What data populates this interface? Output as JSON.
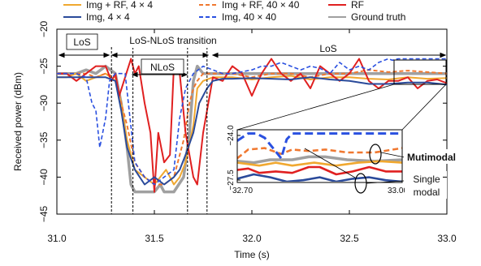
{
  "chart_data": {
    "type": "line",
    "xlabel": "Time (s)",
    "ylabel": "Received power (dBm)",
    "xlim": [
      31.0,
      33.0
    ],
    "ylim": [
      -45,
      -20
    ],
    "xticks": [
      "31.0",
      "31.5",
      "32.0",
      "32.5",
      "33.0"
    ],
    "xtick_values": [
      31.0,
      31.5,
      32.0,
      32.5,
      33.0
    ],
    "yticks": [
      "−20",
      "−25",
      "−30",
      "−35",
      "−40",
      "−45"
    ],
    "ytick_values": [
      -20,
      -25,
      -30,
      -35,
      -40,
      -45
    ],
    "grid": false,
    "legend_position": "top, above plot",
    "legend": [
      {
        "label": "Img + RF, 4 × 4",
        "color": "#f0a830",
        "dash": "solid"
      },
      {
        "label": "Img + RF, 40 × 40",
        "color": "#f07830",
        "dash": "dashed"
      },
      {
        "label": "RF",
        "color": "#e02020",
        "dash": "solid"
      },
      {
        "label": "Img, 4 × 4",
        "color": "#2a4a9a",
        "dash": "solid"
      },
      {
        "label": "Img, 40 × 40",
        "color": "#2a50e0",
        "dash": "dashed"
      },
      {
        "label": "Ground truth",
        "color": "#a0a0a0",
        "dash": "solid"
      }
    ],
    "series": [
      {
        "id": "ground_truth",
        "color": "#a0a0a0",
        "width": 3.5,
        "dash": "",
        "x": [
          31.0,
          31.05,
          31.1,
          31.15,
          31.2,
          31.25,
          31.3,
          31.33,
          31.36,
          31.38,
          31.4,
          31.45,
          31.5,
          31.53,
          31.55,
          31.6,
          31.65,
          31.68,
          31.7,
          31.72,
          31.75,
          31.8,
          31.9,
          32.0,
          32.1,
          32.2,
          32.3,
          32.4,
          32.5,
          32.6,
          32.7,
          32.8,
          32.9,
          33.0
        ],
        "y": [
          -26,
          -26,
          -26,
          -25.5,
          -26,
          -25,
          -26,
          -30,
          -36,
          -41,
          -42,
          -42,
          -42,
          -41,
          -42,
          -42,
          -40,
          -34,
          -27,
          -25,
          -26,
          -26,
          -26,
          -26,
          -26,
          -26,
          -26,
          -26,
          -26,
          -26,
          -26,
          -26,
          -26,
          -26
        ]
      },
      {
        "id": "img_rf_4x4",
        "color": "#f0a830",
        "width": 2,
        "dash": "",
        "x": [
          31.0,
          31.05,
          31.1,
          31.15,
          31.2,
          31.25,
          31.3,
          31.33,
          31.36,
          31.4,
          31.45,
          31.5,
          31.53,
          31.56,
          31.6,
          31.63,
          31.66,
          31.7,
          31.72,
          31.75,
          31.8,
          31.9,
          32.0,
          32.1,
          32.2,
          32.3,
          32.4,
          32.5,
          32.6,
          32.7,
          32.8,
          32.9,
          33.0
        ],
        "y": [
          -26.5,
          -26.5,
          -26,
          -27,
          -26.5,
          -26,
          -27,
          -30,
          -35,
          -39,
          -40,
          -41,
          -40,
          -39,
          -41,
          -40,
          -38,
          -33,
          -28,
          -27,
          -26.5,
          -26.5,
          -26.8,
          -26.5,
          -26.3,
          -26.8,
          -26.5,
          -26.5,
          -26.7,
          -26.8,
          -26.5,
          -26.7,
          -26.6
        ]
      },
      {
        "id": "img_rf_40x40",
        "color": "#f07830",
        "width": 2,
        "dash": "5,3",
        "x": [
          31.0,
          31.05,
          31.1,
          31.15,
          31.2,
          31.25,
          31.3,
          31.33,
          31.36,
          31.4,
          31.45,
          31.5,
          31.55,
          31.6,
          31.65,
          31.68,
          31.7,
          31.72,
          31.75,
          31.8,
          31.9,
          32.0,
          32.1,
          32.2,
          32.3,
          32.4,
          32.5,
          32.6,
          32.7,
          32.8,
          32.9,
          33.0
        ],
        "y": [
          -26,
          -26,
          -26,
          -26,
          -26.5,
          -26,
          -26.5,
          -30,
          -33,
          -38,
          -40,
          -41,
          -41,
          -40,
          -35,
          -30,
          -28,
          -27,
          -26,
          -26,
          -26,
          -26.5,
          -26,
          -26,
          -26.5,
          -26,
          -26,
          -25.5,
          -25.8,
          -25.6,
          -25.8,
          -26
        ]
      },
      {
        "id": "rf",
        "color": "#e02020",
        "width": 2,
        "dash": "",
        "x": [
          31.0,
          31.05,
          31.1,
          31.15,
          31.2,
          31.25,
          31.28,
          31.3,
          31.32,
          31.35,
          31.38,
          31.4,
          31.42,
          31.45,
          31.48,
          31.5,
          31.52,
          31.55,
          31.58,
          31.6,
          31.63,
          31.66,
          31.7,
          31.72,
          31.75,
          31.8,
          31.85,
          31.9,
          31.95,
          32.0,
          32.05,
          32.1,
          32.15,
          32.2,
          32.25,
          32.3,
          32.35,
          32.4,
          32.45,
          32.5,
          32.55,
          32.6,
          32.65,
          32.7,
          32.75,
          32.8,
          32.85,
          32.9,
          32.95,
          33.0
        ],
        "y": [
          -26,
          -26,
          -27,
          -26,
          -25,
          -25,
          -27,
          -26,
          -29,
          -26.5,
          -24,
          -26,
          -25,
          -30,
          -34,
          -42,
          -34,
          -38,
          -37,
          -25,
          -26,
          -34,
          -40,
          -41,
          -34,
          -26.5,
          -27,
          -25,
          -26,
          -29,
          -26,
          -24,
          -26,
          -27,
          -26,
          -28,
          -25,
          -26,
          -27,
          -26,
          -24,
          -27,
          -28,
          -27,
          -27,
          -26.5,
          -28,
          -27,
          -26.8,
          -27.3
        ]
      },
      {
        "id": "img_4x4",
        "color": "#2a4a9a",
        "width": 2,
        "dash": "",
        "x": [
          31.0,
          31.05,
          31.1,
          31.15,
          31.2,
          31.25,
          31.3,
          31.33,
          31.36,
          31.4,
          31.45,
          31.5,
          31.55,
          31.6,
          31.63,
          31.66,
          31.7,
          31.73,
          31.77,
          31.8,
          31.85,
          31.9,
          32.0,
          32.1,
          32.2,
          32.3,
          32.4,
          32.5,
          32.6,
          32.7,
          32.8,
          32.9,
          33.0
        ],
        "y": [
          -26.5,
          -26.5,
          -26.5,
          -26.5,
          -26.5,
          -26.5,
          -27,
          -31,
          -36,
          -39,
          -41,
          -40,
          -41,
          -40,
          -39,
          -37,
          -34,
          -30,
          -28,
          -27,
          -26.7,
          -26.7,
          -26.6,
          -26.7,
          -26.8,
          -26.5,
          -26.8,
          -27,
          -27.4,
          -27.4,
          -27.2,
          -27.2,
          -27.5
        ]
      },
      {
        "id": "img_40x40",
        "color": "#2a50e0",
        "width": 1.6,
        "dash": "5,3",
        "x": [
          31.0,
          31.05,
          31.1,
          31.15,
          31.18,
          31.2,
          31.22,
          31.25,
          31.27,
          31.3,
          31.35,
          31.4,
          31.45,
          31.5,
          31.55,
          31.6,
          31.63,
          31.66,
          31.7,
          31.75,
          31.8,
          31.85,
          31.9,
          32.0,
          32.05,
          32.1,
          32.15,
          32.2,
          32.25,
          32.3,
          32.35,
          32.4,
          32.45,
          32.5,
          32.55,
          32.6,
          32.65,
          32.7,
          32.72,
          32.75,
          32.8,
          32.85,
          32.9,
          32.95,
          33.0
        ],
        "y": [
          -26,
          -26,
          -26,
          -26.5,
          -30,
          -31,
          -36,
          -32,
          -27,
          -26,
          -26,
          -38,
          -40,
          -41,
          -40,
          -39,
          -32,
          -28,
          -26,
          -25,
          -25.5,
          -26,
          -26,
          -25.5,
          -25,
          -25,
          -24.5,
          -25,
          -25.5,
          -25,
          -25.3,
          -26,
          -24.5,
          -25.5,
          -25,
          -25.5,
          -24.5,
          -24,
          -24.2,
          -24,
          -24,
          -24,
          -24,
          -24,
          -24
        ]
      }
    ],
    "inset": {
      "xlim": [
        32.7,
        33.0
      ],
      "ylim": [
        -27.5,
        -24.0
      ],
      "xticks": [
        "32.70",
        "33.00"
      ],
      "xtick_values": [
        32.7,
        33.0
      ],
      "yticks": [
        "−24.0",
        "−27.5"
      ],
      "ytick_values": [
        -24.0,
        -27.5
      ],
      "series": [
        {
          "id": "ground_truth",
          "color": "#a0a0a0",
          "width": 3.5,
          "dash": "",
          "x": [
            32.7,
            32.73,
            32.76,
            32.8,
            32.83,
            32.86,
            32.9,
            32.95,
            33.0
          ],
          "y": [
            -26.1,
            -26.2,
            -26.0,
            -26.0,
            -25.8,
            -25.8,
            -26.0,
            -26.1,
            -26.0
          ]
        },
        {
          "id": "img_rf_4x4",
          "color": "#f0a830",
          "width": 2.6,
          "dash": "",
          "x": [
            32.7,
            32.74,
            32.77,
            32.8,
            32.84,
            32.88,
            32.92,
            32.96,
            33.0
          ],
          "y": [
            -26.2,
            -26.4,
            -26.2,
            -26.4,
            -26.2,
            -26.4,
            -26.2,
            -26.1,
            -26.2
          ]
        },
        {
          "id": "img_rf_40x40",
          "color": "#f07830",
          "width": 2.6,
          "dash": "7,4",
          "x": [
            32.7,
            32.72,
            32.75,
            32.78,
            32.8,
            32.83,
            32.86,
            32.9,
            32.95,
            33.0
          ],
          "y": [
            -25.9,
            -25.3,
            -25.2,
            -25.6,
            -25.3,
            -25.4,
            -25.3,
            -25.5,
            -25.5,
            -25.2
          ]
        },
        {
          "id": "rf",
          "color": "#e02020",
          "width": 2.6,
          "dash": "",
          "x": [
            32.7,
            32.72,
            32.74,
            32.77,
            32.8,
            32.83,
            32.85,
            32.88,
            32.91,
            32.94,
            32.97,
            33.0
          ],
          "y": [
            -26.7,
            -26.6,
            -26.9,
            -26.8,
            -26.9,
            -26.5,
            -26.5,
            -27.0,
            -26.8,
            -26.5,
            -26.8,
            -26.8
          ]
        },
        {
          "id": "img_4x4",
          "color": "#2a4a9a",
          "width": 2.6,
          "dash": "",
          "x": [
            32.7,
            32.73,
            32.76,
            32.79,
            32.82,
            32.85,
            32.88,
            32.91,
            32.94,
            32.97,
            33.0
          ],
          "y": [
            -27.3,
            -27.0,
            -27.2,
            -27.5,
            -27.4,
            -27.2,
            -27.5,
            -27.3,
            -27.2,
            -27.4,
            -27.5
          ]
        },
        {
          "id": "img_40x40",
          "color": "#2a50e0",
          "width": 3,
          "dash": "10,5",
          "x": [
            32.7,
            32.72,
            32.735,
            32.75,
            32.765,
            32.78,
            32.79,
            32.8,
            32.85,
            32.9,
            32.95,
            33.0
          ],
          "y": [
            -24.7,
            -24.2,
            -24.2,
            -24.5,
            -25.2,
            -25.9,
            -24.6,
            -24.2,
            -24.2,
            -24.2,
            -24.2,
            -24.2
          ]
        }
      ]
    },
    "annotations": {
      "los_left": "LoS",
      "transition": "LoS-NLoS transition",
      "nlos": "NLoS",
      "los_right": "LoS",
      "multimodal": "Mutimodal",
      "single_line1": "Single",
      "single_line2": "modal"
    },
    "region_boundaries_x": [
      31.28,
      31.39,
      31.67,
      31.77
    ]
  }
}
